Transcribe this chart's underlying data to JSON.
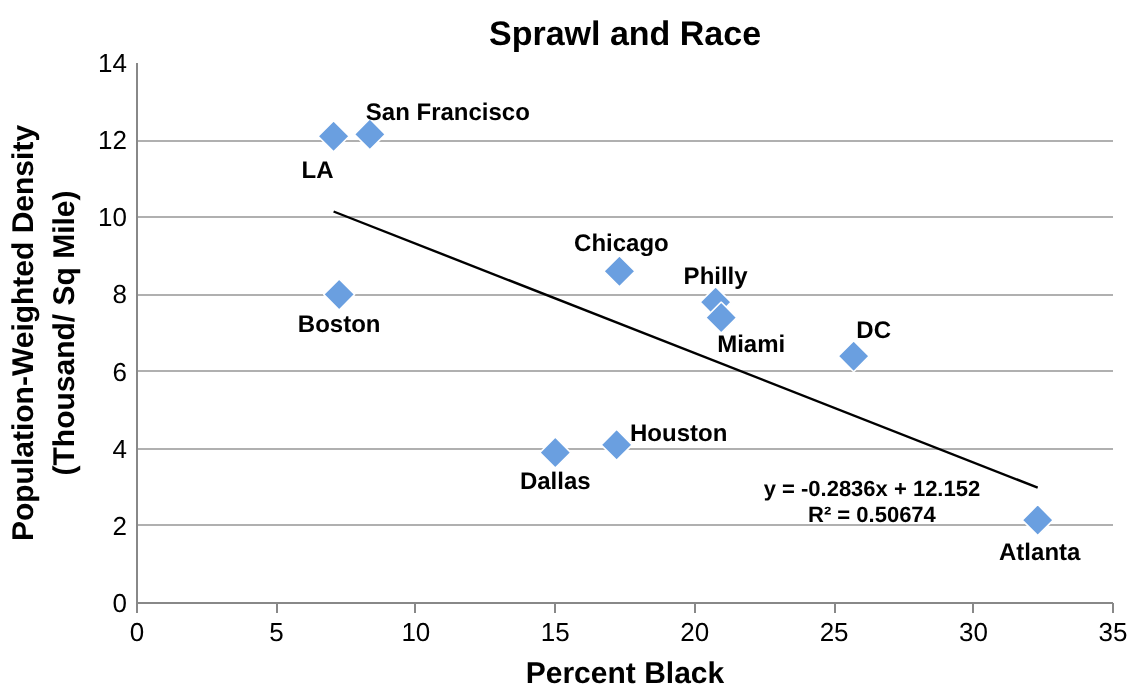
{
  "chart_data": {
    "type": "scatter",
    "title": "Sprawl and Race",
    "xlabel": "Percent Black",
    "ylabel": "Population-Weighted Density\n(Thousand/ Sq Mile)",
    "xlim": [
      0,
      35
    ],
    "xticks": [
      0,
      5,
      10,
      15,
      20,
      25,
      30,
      35
    ],
    "ylim": [
      0,
      14
    ],
    "yticks": [
      0,
      2,
      4,
      6,
      8,
      10,
      12,
      14
    ],
    "grid": "y",
    "marker": "diamond",
    "series": [
      {
        "color": "#6a9fe0",
        "x": [
          7.05,
          8.35,
          7.25,
          15.0,
          17.2,
          17.3,
          20.75,
          20.95,
          25.7,
          32.3
        ],
        "values": [
          12.1,
          12.15,
          8.0,
          3.9,
          4.1,
          8.6,
          7.8,
          7.4,
          6.4,
          2.15
        ]
      },
      {
        "type": "line",
        "color": "#000000",
        "marker": "none",
        "x": [
          7.05,
          32.3
        ],
        "values": [
          10.15,
          2.99
        ]
      }
    ],
    "annotations": [
      {
        "text": "LA",
        "x": 7.05,
        "y": 12.1
      },
      {
        "text": "San Francisco",
        "x": 8.35,
        "y": 12.15
      },
      {
        "text": "Boston",
        "x": 7.25,
        "y": 8.0
      },
      {
        "text": "Dallas",
        "x": 15.0,
        "y": 3.9
      },
      {
        "text": "Houston",
        "x": 17.2,
        "y": 4.1
      },
      {
        "text": "Chicago",
        "x": 17.3,
        "y": 8.6
      },
      {
        "text": "Philly",
        "x": 20.75,
        "y": 7.8
      },
      {
        "text": "Miami",
        "x": 20.95,
        "y": 7.4
      },
      {
        "text": "DC",
        "x": 25.7,
        "y": 6.4
      },
      {
        "text": "Atlanta",
        "x": 32.3,
        "y": 2.15
      },
      "y = -0.2836x + 12.152",
      "R² = 0.50674"
    ]
  }
}
